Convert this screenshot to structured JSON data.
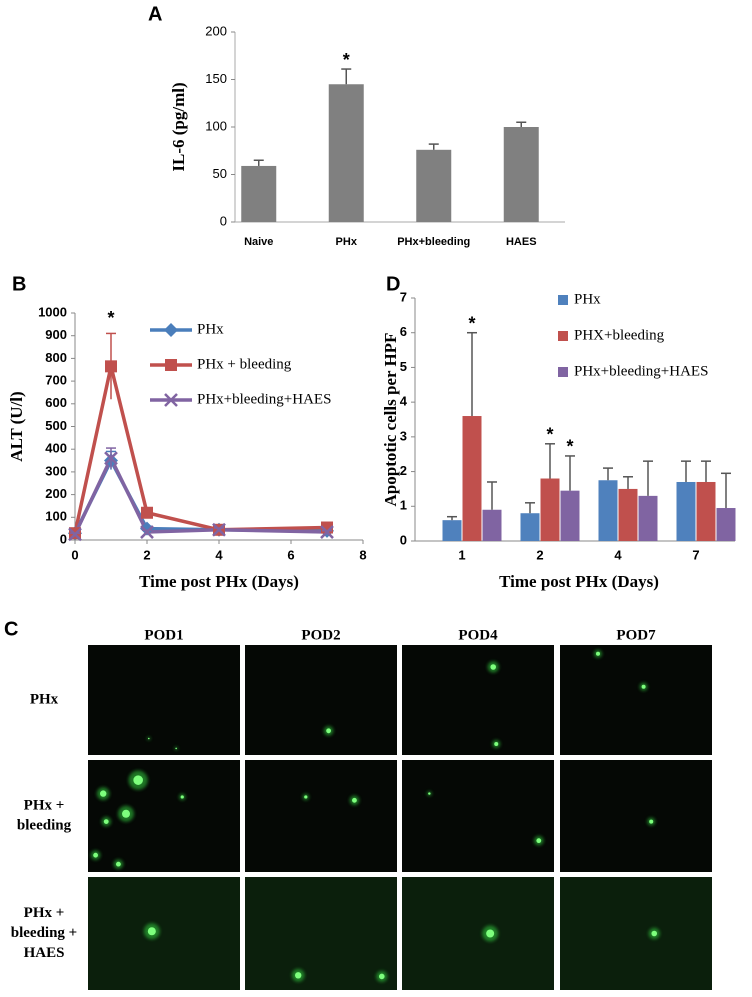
{
  "chart_data": [
    {
      "type": "bar",
      "panel": "A",
      "ylabel": "IL-6 (pg/ml)",
      "categories": [
        "Naive",
        "PHx",
        "PHx+bleeding",
        "HAES"
      ],
      "values": [
        59,
        145,
        76,
        100
      ],
      "errors": [
        6,
        16,
        6,
        5
      ],
      "color": "#808080",
      "significance": [
        null,
        "*",
        null,
        null
      ],
      "ylim": [
        0,
        200
      ],
      "yticks": [
        0,
        50,
        100,
        150,
        200
      ]
    },
    {
      "type": "line",
      "panel": "B",
      "xlabel": "Time post PHx (Days)",
      "ylabel": "ALT (U/l)",
      "x": [
        0,
        1,
        2,
        4,
        7
      ],
      "series": [
        {
          "name": "PHx",
          "color": "#4a7ebb",
          "marker": "diamond",
          "values": [
            30,
            350,
            50,
            45,
            40
          ],
          "errors": [
            5,
            40,
            10,
            8,
            8
          ],
          "significance": [
            null,
            null,
            null,
            null,
            null
          ]
        },
        {
          "name": "PHx + bleeding",
          "color": "#c0504d",
          "marker": "square",
          "values": [
            30,
            765,
            120,
            45,
            55
          ],
          "errors": [
            5,
            145,
            15,
            8,
            8
          ],
          "significance": [
            null,
            "*",
            null,
            null,
            null
          ]
        },
        {
          "name": "PHx+bleeding+HAES",
          "color": "#8064a2",
          "marker": "x",
          "values": [
            25,
            360,
            35,
            45,
            35
          ],
          "errors": [
            5,
            45,
            8,
            8,
            6
          ],
          "significance": [
            null,
            null,
            null,
            null,
            null
          ]
        }
      ],
      "xlim": [
        0,
        8
      ],
      "xticks": [
        0,
        2,
        4,
        6,
        8
      ],
      "ylim": [
        0,
        1000
      ],
      "yticks": [
        0,
        100,
        200,
        300,
        400,
        500,
        600,
        700,
        800,
        900,
        1000
      ]
    },
    {
      "type": "bar",
      "panel": "D",
      "xlabel": "Time post PHx (Days)",
      "ylabel": "Apoptotic cells per HPF",
      "categories": [
        "1",
        "2",
        "4",
        "7"
      ],
      "series": [
        {
          "name": "PHx",
          "color": "#4f81bd",
          "values": [
            0.6,
            0.8,
            1.75,
            1.7
          ],
          "errors": [
            0.1,
            0.3,
            0.35,
            0.6
          ],
          "significance": [
            null,
            null,
            null,
            null
          ]
        },
        {
          "name": "PHX+bleeding",
          "color": "#c0504d",
          "values": [
            3.6,
            1.8,
            1.5,
            1.7
          ],
          "errors": [
            2.4,
            1.0,
            0.35,
            0.6
          ],
          "significance": [
            "*",
            "*",
            null,
            null
          ]
        },
        {
          "name": "PHx+bleeding+HAES",
          "color": "#8064a2",
          "values": [
            0.9,
            1.45,
            1.3,
            0.95
          ],
          "errors": [
            0.8,
            1.0,
            1.0,
            1.0
          ],
          "significance": [
            null,
            "*",
            null,
            null
          ]
        }
      ],
      "ylim": [
        0,
        7
      ],
      "yticks": [
        0,
        1,
        2,
        3,
        4,
        5,
        6,
        7
      ]
    }
  ],
  "panel_c": {
    "panel": "C",
    "columns": [
      "POD1",
      "POD2",
      "POD4",
      "POD7"
    ],
    "rows": [
      [
        "PHx"
      ],
      [
        "PHx +",
        "bleeding"
      ],
      [
        "PHx +",
        "bleeding +",
        "HAES"
      ]
    ]
  }
}
